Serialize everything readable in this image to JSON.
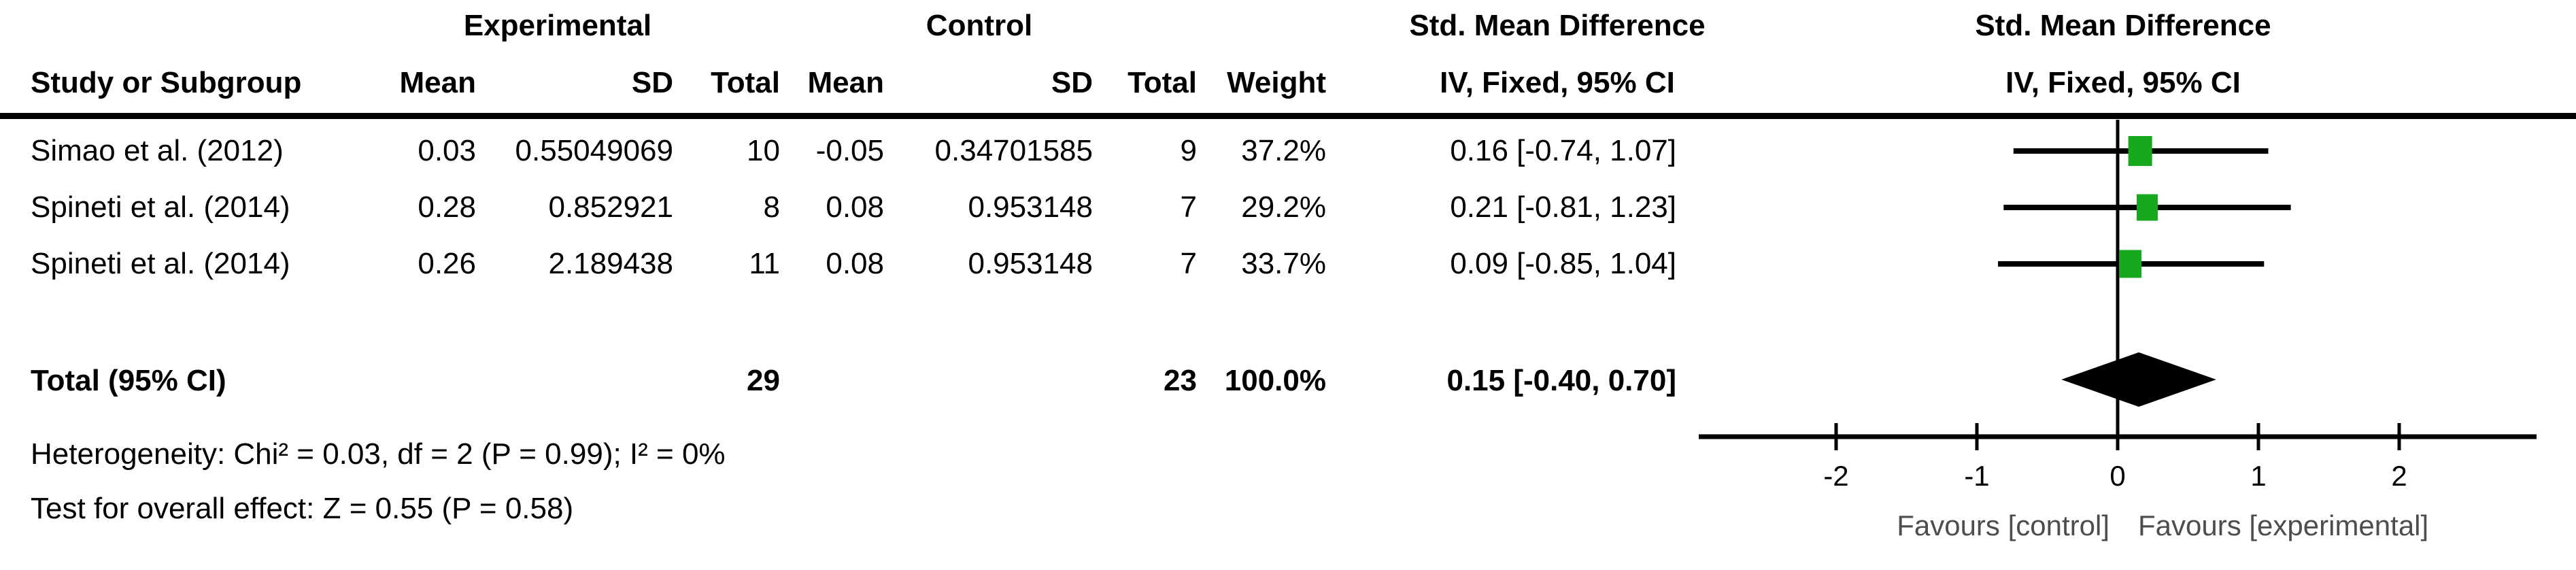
{
  "table": {
    "group_headers": {
      "experimental": "Experimental",
      "control": "Control",
      "smd": "Std. Mean Difference"
    },
    "columns": {
      "study": "Study or Subgroup",
      "mean": "Mean",
      "sd": "SD",
      "total": "Total",
      "mean2": "Mean",
      "sd2": "SD",
      "total2": "Total",
      "weight": "Weight",
      "effect": "IV, Fixed, 95% CI"
    },
    "rows": [
      {
        "study": "Simao et al. (2012)",
        "mean_e": "0.03",
        "sd_e": "0.55049069",
        "total_e": "10",
        "mean_c": "-0.05",
        "sd_c": "0.34701585",
        "total_c": "9",
        "weight": "37.2%",
        "effect": "0.16 [-0.74, 1.07]"
      },
      {
        "study": "Spineti et al. (2014)",
        "mean_e": "0.28",
        "sd_e": "0.852921",
        "total_e": "8",
        "mean_c": "0.08",
        "sd_c": "0.953148",
        "total_c": "7",
        "weight": "29.2%",
        "effect": "0.21 [-0.81, 1.23]"
      },
      {
        "study": "Spineti et al. (2014)",
        "mean_e": "0.26",
        "sd_e": "2.189438",
        "total_e": "11",
        "mean_c": "0.08",
        "sd_c": "0.953148",
        "total_c": "7",
        "weight": "33.7%",
        "effect": "0.09 [-0.85, 1.04]"
      }
    ],
    "total_row": {
      "label": "Total (95% CI)",
      "total_e": "29",
      "total_c": "23",
      "weight": "100.0%",
      "effect": "0.15 [-0.40, 0.70]"
    },
    "footnotes": {
      "heterogeneity": "Heterogeneity: Chi² = 0.03, df = 2 (P = 0.99); I² = 0%",
      "overall_effect": "Test for overall effect: Z = 0.55 (P = 0.58)"
    }
  },
  "plot": {
    "header_line1": "Std. Mean Difference",
    "header_line2": "IV, Fixed, 95% CI",
    "favours_left": "Favours [control]",
    "favours_right": "Favours [experimental]",
    "marker_color": "#17a81e",
    "line_color": "#000000"
  },
  "chart_data": {
    "type": "forest",
    "effect_measure": "Std. Mean Difference (IV, Fixed, 95% CI)",
    "studies": [
      {
        "name": "Simao et al. (2012)",
        "mean_exp": 0.03,
        "sd_exp": 0.55049069,
        "n_exp": 10,
        "mean_ctrl": -0.05,
        "sd_ctrl": 0.34701585,
        "n_ctrl": 9,
        "weight_pct": 37.2,
        "estimate": 0.16,
        "ci_low": -0.74,
        "ci_high": 1.07
      },
      {
        "name": "Spineti et al. (2014)",
        "mean_exp": 0.28,
        "sd_exp": 0.852921,
        "n_exp": 8,
        "mean_ctrl": 0.08,
        "sd_ctrl": 0.953148,
        "n_ctrl": 7,
        "weight_pct": 29.2,
        "estimate": 0.21,
        "ci_low": -0.81,
        "ci_high": 1.23
      },
      {
        "name": "Spineti et al. (2014)",
        "mean_exp": 0.26,
        "sd_exp": 2.189438,
        "n_exp": 11,
        "mean_ctrl": 0.08,
        "sd_ctrl": 0.953148,
        "n_ctrl": 7,
        "weight_pct": 33.7,
        "estimate": 0.09,
        "ci_low": -0.85,
        "ci_high": 1.04
      }
    ],
    "total": {
      "n_exp": 29,
      "n_ctrl": 23,
      "weight_pct": 100.0,
      "estimate": 0.15,
      "ci_low": -0.4,
      "ci_high": 0.7
    },
    "heterogeneity": {
      "chi2": 0.03,
      "df": 2,
      "p": 0.99,
      "i2_pct": 0
    },
    "overall_effect": {
      "z": 0.55,
      "p": 0.58
    },
    "axis": {
      "ticks": [
        -2,
        -1,
        0,
        1,
        2
      ],
      "min": -2.97,
      "max": 2.97,
      "label_left": "Favours [control]",
      "label_right": "Favours [experimental]"
    }
  }
}
